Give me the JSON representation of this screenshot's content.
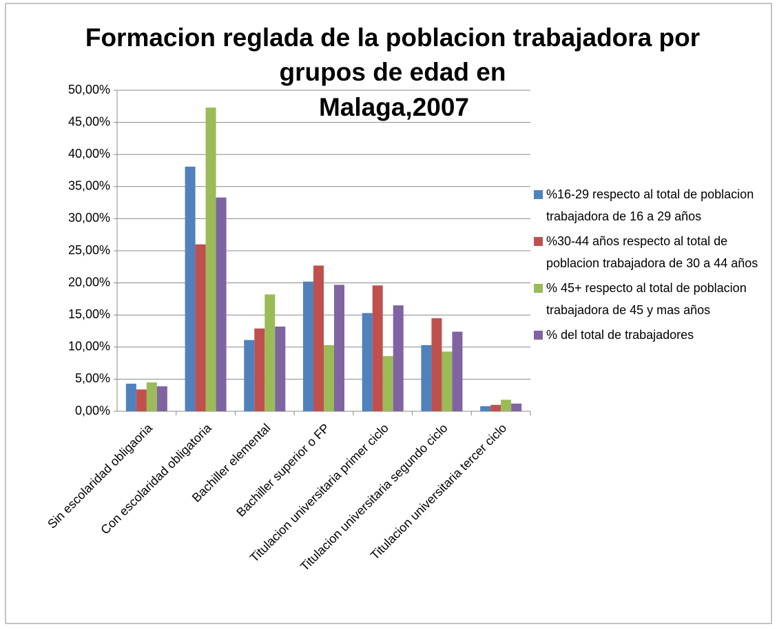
{
  "chart_data": {
    "type": "bar",
    "title": [
      "Formacion reglada de la poblacion trabajadora por",
      "grupos de edad en",
      "Malaga,2007"
    ],
    "categories": [
      "Sin escolaridad obligaoria",
      "Con escolaridad obligatoria",
      "Bachiller elemental",
      "Bachiller superior o FP",
      "Titulacion universitaria primer ciclo",
      "Titulacion universitaria segundo ciclo",
      "Titulacion universitaria tercer ciclo"
    ],
    "series": [
      {
        "name": "%16-29 respecto al total de poblacion trabajadora de 16 a 29 años",
        "color": "#4f81bd",
        "values": [
          4.3,
          38.1,
          11.1,
          20.2,
          15.3,
          10.3,
          0.8
        ]
      },
      {
        "name": "%30-44 años respecto al total de poblacion trabajadora de 30 a 44 años",
        "color": "#c0504d",
        "values": [
          3.4,
          26.0,
          12.9,
          22.7,
          19.6,
          14.5,
          1.0
        ]
      },
      {
        "name": "% 45+ respecto al total de poblacion trabajadora de 45 y mas años",
        "color": "#9bbb59",
        "values": [
          4.5,
          47.3,
          18.2,
          10.3,
          8.6,
          9.3,
          1.8
        ]
      },
      {
        "name": "% del total de trabajadores",
        "color": "#8064a2",
        "values": [
          3.9,
          33.3,
          13.2,
          19.7,
          16.5,
          12.4,
          1.2
        ]
      }
    ],
    "ylim": [
      0,
      50
    ],
    "yticks": [
      {
        "value": 0,
        "label": "0,00%"
      },
      {
        "value": 5,
        "label": "5,00%"
      },
      {
        "value": 10,
        "label": "10,00%"
      },
      {
        "value": 15,
        "label": "15,00%"
      },
      {
        "value": 20,
        "label": "20,00%"
      },
      {
        "value": 25,
        "label": "25,00%"
      },
      {
        "value": 30,
        "label": "30,00%"
      },
      {
        "value": 35,
        "label": "35,00%"
      },
      {
        "value": 40,
        "label": "40,00%"
      },
      {
        "value": 45,
        "label": "45,00%"
      },
      {
        "value": 50,
        "label": "50,00%"
      }
    ],
    "grid": true,
    "legend": "right"
  }
}
